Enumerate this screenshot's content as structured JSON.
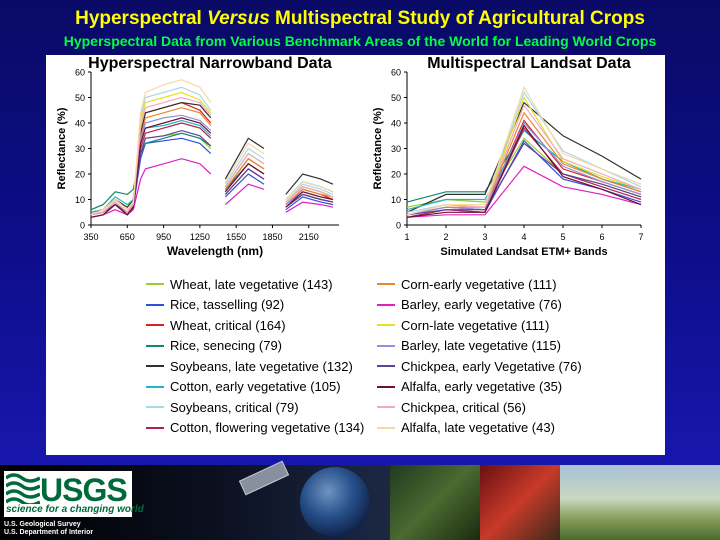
{
  "title_parts": {
    "a": "Hyperspectral ",
    "b": "Versus",
    "c": " Multispectral Study of Agricultural Crops"
  },
  "subtitle": "Hyperspectral Data from Various Benchmark Areas of the World for Leading World Crops",
  "chart_data": [
    {
      "type": "line",
      "title": "Hyperspectral Narrowband Data",
      "xlabel": "Wavelength (nm)",
      "ylabel": "Reflectance (%)",
      "xlim": [
        350,
        2400
      ],
      "ylim": [
        0,
        60
      ],
      "xticks": [
        350,
        650,
        950,
        1250,
        1550,
        1850,
        2150
      ],
      "yticks": [
        0,
        10,
        20,
        30,
        40,
        50,
        60
      ],
      "gaps": [
        [
          1350,
          1450
        ],
        [
          1800,
          1950
        ]
      ],
      "profile_x": [
        350,
        450,
        550,
        650,
        700,
        760,
        800,
        950,
        1100,
        1250,
        1340,
        1460,
        1650,
        1780,
        1960,
        2100,
        2250,
        2350
      ],
      "series": [
        {
          "name": "Wheat, late vegetative (143)",
          "color": "#9acd32",
          "values": [
            5,
            6,
            10,
            6,
            8,
            28,
            34,
            35,
            36,
            34,
            30,
            12,
            22,
            18,
            7,
            12,
            10,
            9
          ]
        },
        {
          "name": "Rice, tasselling (92)",
          "color": "#3050d8",
          "values": [
            4,
            5,
            8,
            4,
            7,
            26,
            32,
            33,
            34,
            32,
            28,
            11,
            20,
            16,
            6,
            11,
            9,
            8
          ]
        },
        {
          "name": "Wheat, critical (164)",
          "color": "#e02020",
          "values": [
            4,
            5,
            9,
            4,
            8,
            36,
            44,
            46,
            48,
            45,
            40,
            14,
            26,
            22,
            8,
            14,
            12,
            10
          ]
        },
        {
          "name": "Rice, senecing (79)",
          "color": "#108870",
          "values": [
            6,
            8,
            13,
            12,
            14,
            28,
            32,
            34,
            36,
            34,
            31,
            14,
            24,
            20,
            9,
            15,
            13,
            11
          ]
        },
        {
          "name": "Soybeans, late vegetative (132)",
          "color": "#303030",
          "values": [
            5,
            6,
            10,
            7,
            10,
            36,
            44,
            46,
            48,
            47,
            42,
            18,
            34,
            30,
            12,
            20,
            18,
            16
          ]
        },
        {
          "name": "Cotton, early vegetative (105)",
          "color": "#20b8c8",
          "values": [
            5,
            6,
            11,
            8,
            10,
            32,
            38,
            39,
            41,
            39,
            35,
            15,
            28,
            24,
            10,
            17,
            15,
            13
          ]
        },
        {
          "name": "Soybeans, critical (79)",
          "color": "#a8d8f0",
          "values": [
            4,
            5,
            9,
            5,
            8,
            42,
            50,
            52,
            54,
            51,
            45,
            16,
            30,
            26,
            9,
            16,
            14,
            12
          ]
        },
        {
          "name": "Cotton, flowering vegetative (134)",
          "color": "#b02050",
          "values": [
            3,
            4,
            8,
            4,
            7,
            30,
            36,
            38,
            40,
            38,
            34,
            12,
            22,
            18,
            7,
            12,
            10,
            9
          ]
        },
        {
          "name": "Corn-early vegetative (111)",
          "color": "#e8882a",
          "values": [
            4,
            6,
            10,
            6,
            9,
            34,
            42,
            44,
            46,
            44,
            39,
            14,
            26,
            22,
            8,
            14,
            12,
            11
          ]
        },
        {
          "name": "Barley, early vegetative (76)",
          "color": "#e020c0",
          "values": [
            3,
            4,
            6,
            4,
            6,
            18,
            22,
            24,
            26,
            24,
            20,
            8,
            16,
            14,
            5,
            9,
            8,
            7
          ]
        },
        {
          "name": "Corn-late vegetative (111)",
          "color": "#e8e020",
          "values": [
            4,
            6,
            10,
            6,
            9,
            40,
            48,
            50,
            52,
            49,
            44,
            15,
            28,
            24,
            9,
            15,
            13,
            11
          ]
        },
        {
          "name": "Barley, late vegetative (115)",
          "color": "#9090e0",
          "values": [
            4,
            5,
            9,
            5,
            8,
            33,
            40,
            42,
            43,
            41,
            37,
            13,
            24,
            20,
            8,
            13,
            11,
            10
          ]
        },
        {
          "name": "Chickpea, early Vegetative (76)",
          "color": "#6040a0",
          "values": [
            4,
            5,
            8,
            5,
            7,
            28,
            34,
            35,
            37,
            35,
            31,
            12,
            22,
            18,
            7,
            12,
            10,
            9
          ]
        },
        {
          "name": "Alfalfa, early vegetative (35)",
          "color": "#701030",
          "values": [
            3,
            4,
            8,
            4,
            7,
            32,
            38,
            40,
            42,
            40,
            36,
            13,
            24,
            20,
            7,
            13,
            11,
            10
          ]
        },
        {
          "name": "Chickpea, critical (56)",
          "color": "#f0a8c8",
          "values": [
            4,
            5,
            9,
            5,
            8,
            38,
            46,
            48,
            50,
            48,
            43,
            15,
            28,
            24,
            9,
            15,
            13,
            11
          ]
        },
        {
          "name": "Alfalfa, late vegetative (43)",
          "color": "#f8d8a0",
          "values": [
            4,
            6,
            10,
            6,
            9,
            44,
            52,
            55,
            57,
            54,
            48,
            17,
            32,
            28,
            10,
            17,
            15,
            13
          ]
        }
      ]
    },
    {
      "type": "line",
      "title": "Multispectral Landsat Data",
      "xlabel": "Simulated Landsat ETM+ Bands",
      "ylabel": "Reflectance (%)",
      "xlim": [
        1,
        7
      ],
      "ylim": [
        0,
        60
      ],
      "xticks": [
        1,
        2,
        3,
        4,
        5,
        6,
        7
      ],
      "yticks": [
        0,
        10,
        20,
        30,
        40,
        50,
        60
      ],
      "x": [
        1,
        2,
        3,
        4,
        5,
        6,
        7
      ],
      "series": [
        {
          "name": "Wheat, late vegetative (143)",
          "color": "#9acd32",
          "values": [
            7,
            10,
            9,
            34,
            20,
            16,
            11
          ]
        },
        {
          "name": "Rice, tasselling (92)",
          "color": "#3050d8",
          "values": [
            3,
            6,
            5,
            33,
            18,
            14,
            9
          ]
        },
        {
          "name": "Wheat, critical (164)",
          "color": "#e02020",
          "values": [
            4,
            7,
            6,
            41,
            22,
            17,
            12
          ]
        },
        {
          "name": "Rice, senecing (79)",
          "color": "#108870",
          "values": [
            9,
            13,
            13,
            37,
            25,
            18,
            13
          ]
        },
        {
          "name": "Soybeans, late vegetative (132)",
          "color": "#303030",
          "values": [
            5,
            12,
            12,
            48,
            35,
            27,
            18
          ]
        },
        {
          "name": "Cotton, early vegetative (105)",
          "color": "#20b8c8",
          "values": [
            6,
            10,
            10,
            37,
            25,
            18,
            14
          ]
        },
        {
          "name": "Soybeans, critical (79)",
          "color": "#a8d8f0",
          "values": [
            5,
            8,
            7,
            52,
            29,
            22,
            15
          ]
        },
        {
          "name": "Cotton, flowering vegetative (134)",
          "color": "#b02050",
          "values": [
            3,
            6,
            5,
            38,
            20,
            15,
            10
          ]
        },
        {
          "name": "Corn-early vegetative (111)",
          "color": "#e8882a",
          "values": [
            4,
            7,
            7,
            44,
            24,
            18,
            13
          ]
        },
        {
          "name": "Barley, early vegetative (76)",
          "color": "#e020c0",
          "values": [
            3,
            4,
            4,
            23,
            15,
            12,
            8
          ]
        },
        {
          "name": "Corn-late vegetative (111)",
          "color": "#e8e020",
          "values": [
            4,
            8,
            7,
            50,
            25,
            19,
            14
          ]
        },
        {
          "name": "Barley, late vegetative (115)",
          "color": "#9090e0",
          "values": [
            4,
            7,
            6,
            40,
            23,
            17,
            12
          ]
        },
        {
          "name": "Chickpea, early Vegetative (76)",
          "color": "#6040a0",
          "values": [
            4,
            6,
            6,
            32,
            20,
            16,
            11
          ]
        },
        {
          "name": "Alfalfa, early vegetative (35)",
          "color": "#701030",
          "values": [
            3,
            5,
            5,
            39,
            19,
            14,
            8
          ]
        },
        {
          "name": "Chickpea, critical (56)",
          "color": "#f0a8c8",
          "values": [
            4,
            8,
            7,
            47,
            26,
            20,
            14
          ]
        },
        {
          "name": "Alfalfa, late vegetative (43)",
          "color": "#f8d8a0",
          "values": [
            4,
            8,
            8,
            54,
            28,
            22,
            16
          ]
        }
      ]
    }
  ],
  "footer": {
    "logo_text": "USGS",
    "tagline": "science for a changing world",
    "agency_line1": "U.S. Geological Survey",
    "agency_line2": "U.S. Department of Interior"
  }
}
